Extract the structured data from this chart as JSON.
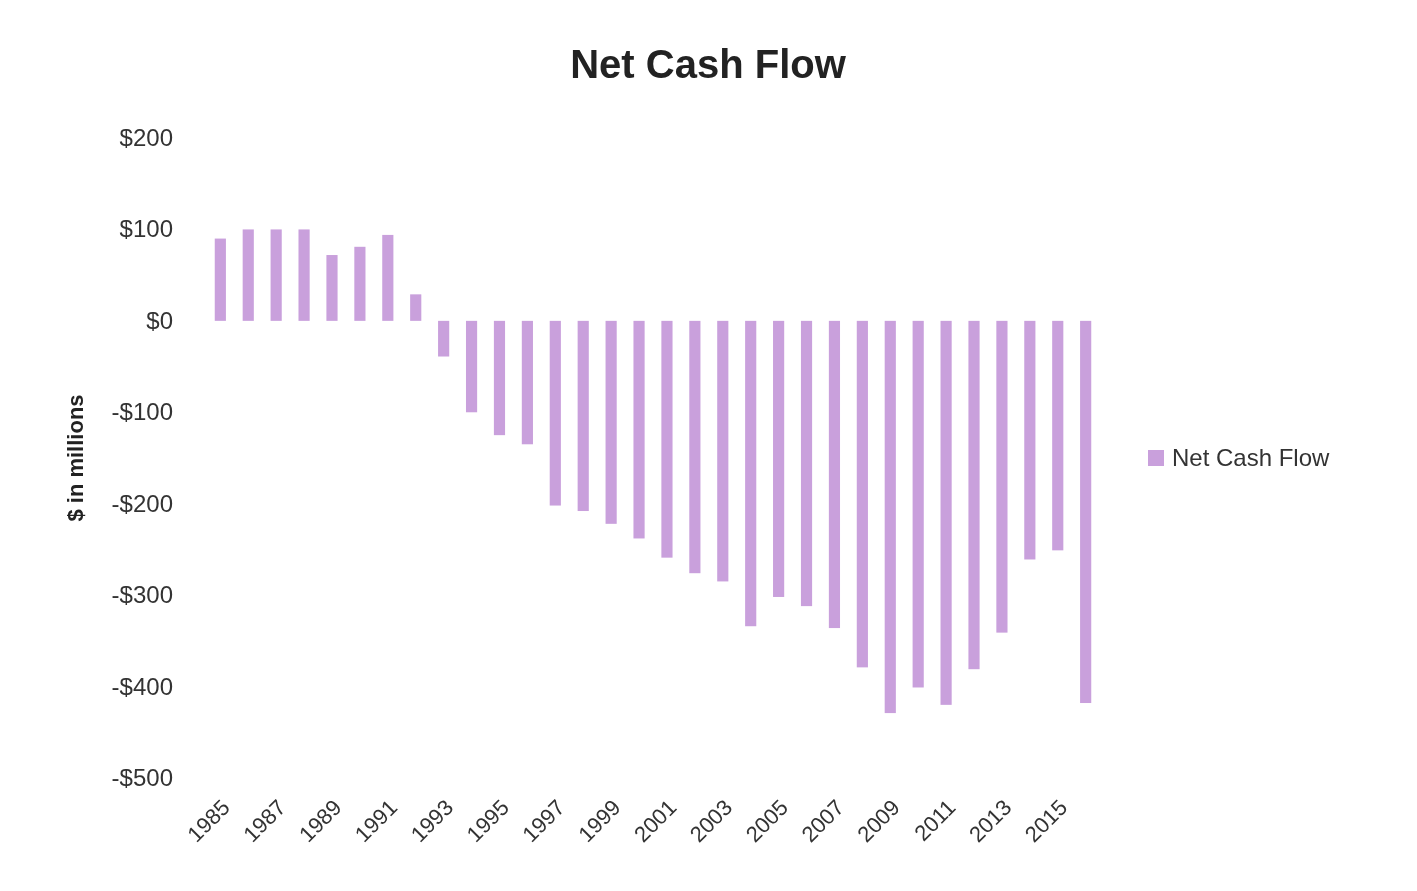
{
  "chart_data": {
    "type": "bar",
    "title": "Net Cash Flow",
    "ylabel": "$ in millions",
    "categories": [
      "1985",
      null,
      "1987",
      null,
      "1989",
      null,
      "1991",
      null,
      "1993",
      null,
      "1995",
      null,
      "1997",
      null,
      "1999",
      null,
      "2001",
      null,
      "2003",
      null,
      "2005",
      null,
      "2007",
      null,
      "2009",
      null,
      "2011",
      null,
      "2013",
      null,
      "2015",
      null
    ],
    "series": [
      {
        "name": "Net Cash Flow",
        "color": "#c9a0dc",
        "values": [
          90,
          100,
          100,
          100,
          72,
          81,
          94,
          29,
          -39,
          -100,
          -125,
          -135,
          -202,
          -208,
          -222,
          -238,
          -259,
          -276,
          -285,
          -334,
          -302,
          -312,
          -336,
          -379,
          -429,
          -401,
          -420,
          -381,
          -341,
          -261,
          -251,
          -418
        ]
      }
    ],
    "ylim": [
      -500,
      200
    ],
    "yticks": [
      {
        "value": 200,
        "label": "$200"
      },
      {
        "value": 100,
        "label": "$100"
      },
      {
        "value": 0,
        "label": "$0"
      },
      {
        "value": -100,
        "label": "-$100"
      },
      {
        "value": -200,
        "label": "-$200"
      },
      {
        "value": -300,
        "label": "-$300"
      },
      {
        "value": -400,
        "label": "-$400"
      },
      {
        "value": -500,
        "label": "-$500"
      }
    ],
    "legend": "right"
  }
}
